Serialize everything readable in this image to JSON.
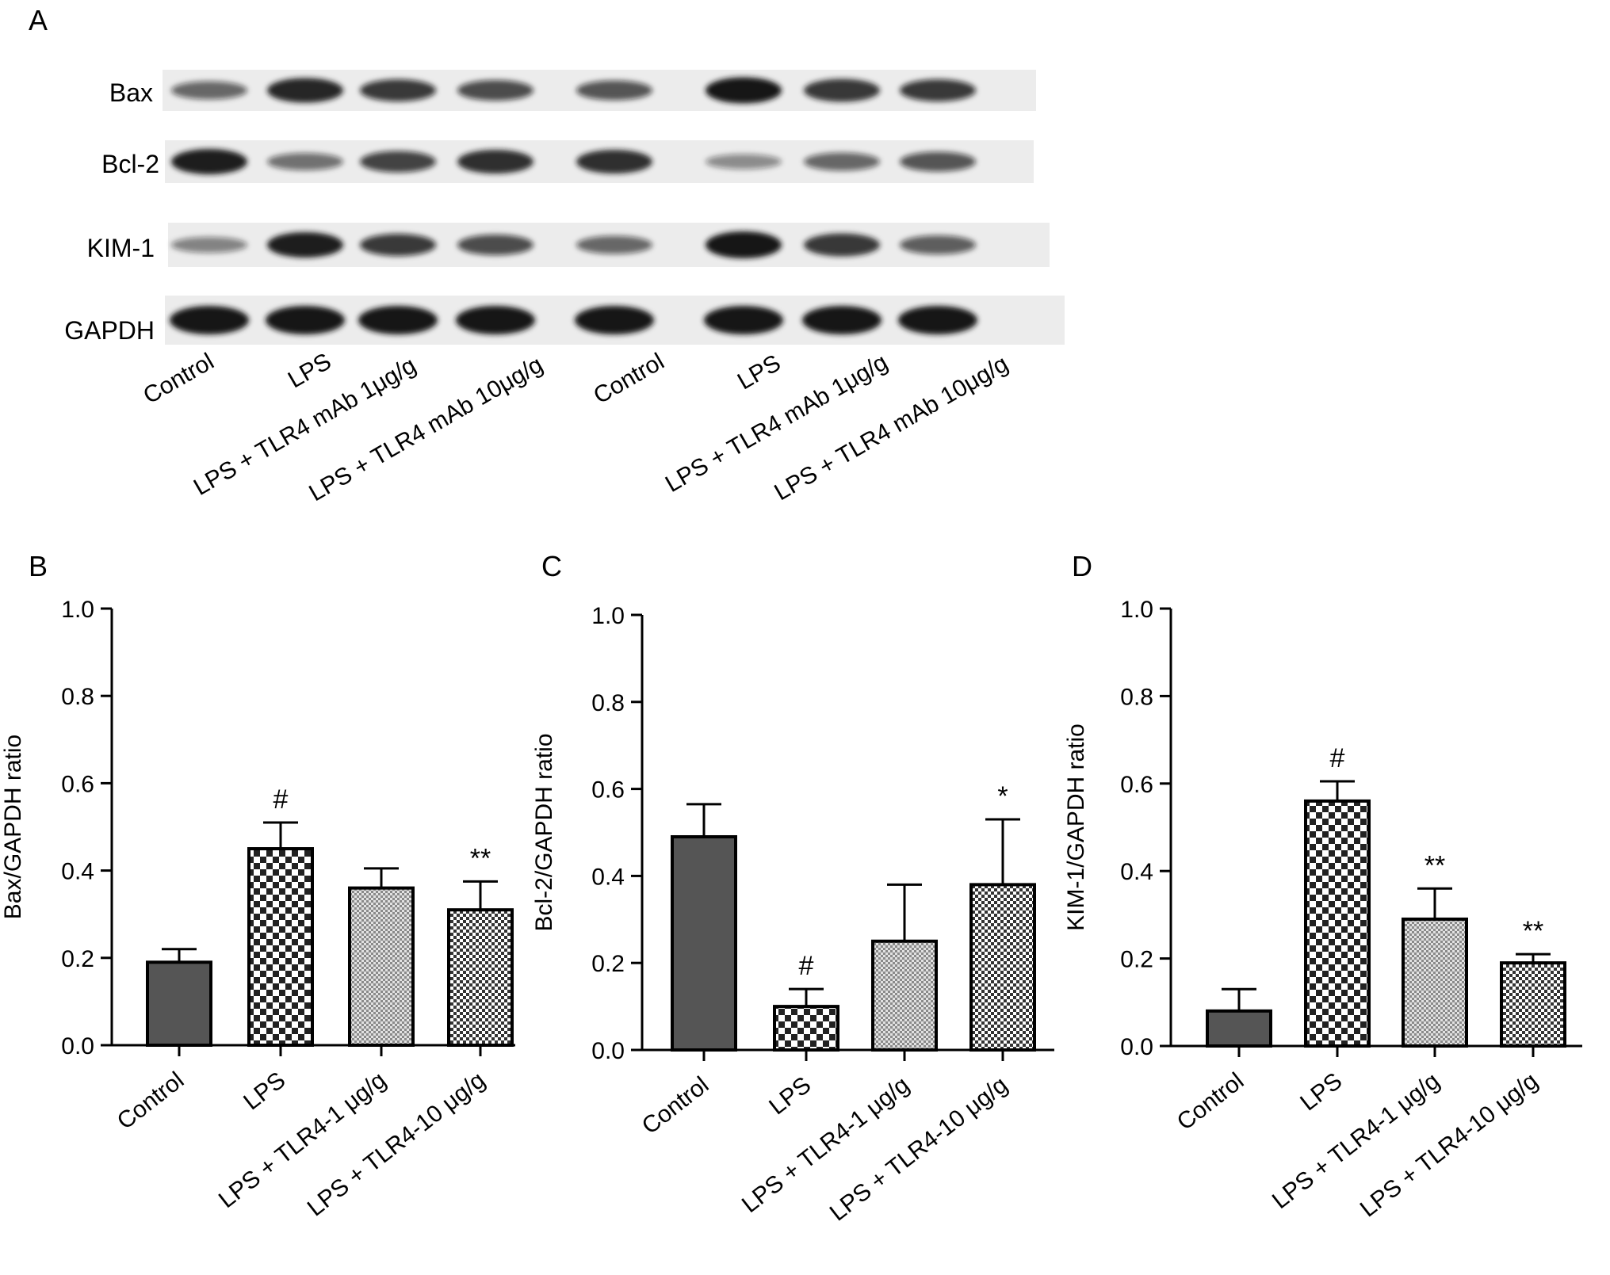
{
  "panel_letters": {
    "a": "A",
    "b": "B",
    "c": "C",
    "d": "D"
  },
  "blot": {
    "proteins": [
      "Bax",
      "Bcl-2",
      "KIM-1",
      "GAPDH"
    ],
    "lanes": [
      "Control",
      "LPS",
      "LPS + TLR4 mAb 1μg/g",
      "LPS + TLR4 mAb 10μg/g",
      "Control",
      "LPS",
      "LPS + TLR4 mAb 1μg/g",
      "LPS + TLR4 mAb 10μg/g"
    ],
    "band_intensity": [
      [
        0.45,
        0.85,
        0.7,
        0.6,
        0.55,
        0.95,
        0.75,
        0.7
      ],
      [
        0.9,
        0.4,
        0.65,
        0.8,
        0.8,
        0.25,
        0.45,
        0.55
      ],
      [
        0.3,
        0.9,
        0.7,
        0.6,
        0.45,
        1.0,
        0.75,
        0.5
      ],
      [
        1.0,
        1.0,
        1.0,
        1.0,
        1.0,
        1.0,
        1.0,
        1.0
      ]
    ],
    "band_color": "#141414"
  },
  "chart_data": [
    {
      "type": "bar",
      "panel": "B",
      "ylabel": "Bax/GAPDH ratio",
      "ylim": [
        0,
        1.0
      ],
      "yticks": [
        "0.0",
        "0.2",
        "0.4",
        "0.6",
        "0.8",
        "1.0"
      ],
      "categories": [
        "Control",
        "LPS",
        "LPS + TLR4-1 μg/g",
        "LPS + TLR4-10 μg/g"
      ],
      "values": [
        0.19,
        0.45,
        0.36,
        0.31
      ],
      "errors": [
        0.03,
        0.06,
        0.045,
        0.065
      ],
      "annotations": [
        "",
        "#",
        "",
        "**"
      ],
      "bar_styles": [
        "solid-dark",
        "checker-large",
        "dots-fine",
        "checker-small"
      ]
    },
    {
      "type": "bar",
      "panel": "C",
      "ylabel": "Bcl-2/GAPDH ratio",
      "ylim": [
        0,
        1.0
      ],
      "yticks": [
        "0.0",
        "0.2",
        "0.4",
        "0.6",
        "0.8",
        "1.0"
      ],
      "categories": [
        "Control",
        "LPS",
        "LPS + TLR4-1 μg/g",
        "LPS + TLR4-10 μg/g"
      ],
      "values": [
        0.49,
        0.1,
        0.25,
        0.38
      ],
      "errors": [
        0.075,
        0.04,
        0.13,
        0.15
      ],
      "annotations": [
        "",
        "#",
        "",
        "*"
      ],
      "bar_styles": [
        "solid-dark",
        "checker-large",
        "dots-fine",
        "checker-small"
      ]
    },
    {
      "type": "bar",
      "panel": "D",
      "ylabel": "KIM-1/GAPDH ratio",
      "ylim": [
        0,
        1.0
      ],
      "yticks": [
        "0.0",
        "0.2",
        "0.4",
        "0.6",
        "0.8",
        "1.0"
      ],
      "categories": [
        "Control",
        "LPS",
        "LPS + TLR4-1 μg/g",
        "LPS + TLR4-10 μg/g"
      ],
      "values": [
        0.08,
        0.56,
        0.29,
        0.19
      ],
      "errors": [
        0.05,
        0.045,
        0.07,
        0.02
      ],
      "annotations": [
        "",
        "#",
        "**",
        "**"
      ],
      "bar_styles": [
        "solid-dark",
        "checker-large",
        "dots-fine",
        "checker-small"
      ]
    }
  ],
  "colors": {
    "bar_dark": "#555555",
    "axis": "#000000"
  }
}
